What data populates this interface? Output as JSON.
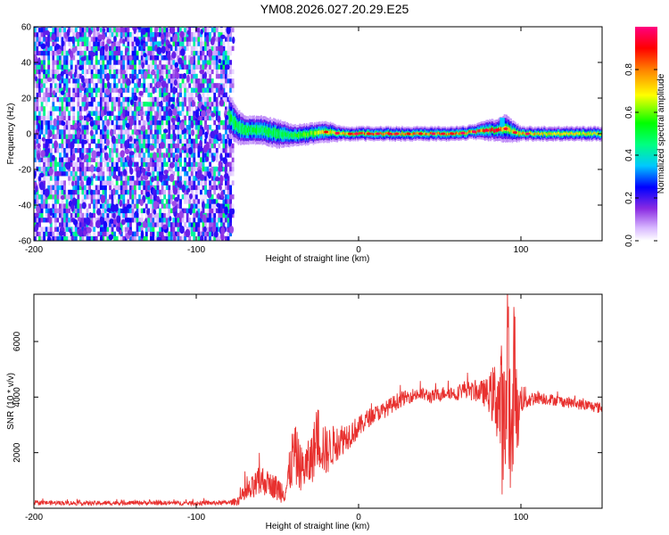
{
  "title": "YM08.2026.027.20.29.E25",
  "chart_data": [
    {
      "type": "heatmap",
      "title": "",
      "xlabel": "Height of straight line (km)",
      "ylabel": "Frequency (Hz)",
      "xlim": [
        -200,
        150
      ],
      "ylim": [
        -60,
        60
      ],
      "xticks": [
        -200,
        -100,
        0,
        100
      ],
      "yticks": [
        -60,
        -40,
        -20,
        0,
        20,
        40,
        60
      ],
      "colorbar": {
        "label": "Normalized spectral amplitude",
        "range": [
          0,
          1
        ],
        "ticks": [
          0.0,
          0.2,
          0.4,
          0.6,
          0.8
        ],
        "colormap": [
          "#ffffff",
          "#8a2be2",
          "#0000ff",
          "#00c8ff",
          "#00ff00",
          "#ffff00",
          "#ff0000",
          "#ff0080"
        ]
      },
      "noise_region": {
        "x_range": [
          -200,
          -77
        ],
        "y_range": [
          -60,
          60
        ],
        "typical_amplitude": 0.15
      },
      "ridge": {
        "description_x": [
          -80,
          -75,
          -70,
          -60,
          -50,
          -40,
          -30,
          -20,
          -10,
          0,
          10,
          20,
          30,
          40,
          50,
          60,
          70,
          80,
          85,
          90,
          95,
          100,
          110,
          120,
          130,
          140,
          150
        ],
        "center_freq": [
          10,
          4,
          2,
          2,
          0,
          -1,
          0,
          1,
          0,
          0,
          0,
          0,
          0,
          0,
          0,
          0,
          1,
          2,
          2,
          3,
          1,
          0,
          0,
          0,
          0,
          0,
          0
        ],
        "half_width": [
          6,
          5,
          4,
          4,
          4,
          3,
          3,
          3,
          2,
          2,
          2,
          2,
          2,
          2,
          2,
          2,
          2,
          3,
          3,
          4,
          3,
          2,
          2,
          2,
          2,
          2,
          2
        ],
        "peak_amplitude": [
          0.5,
          0.55,
          0.5,
          0.5,
          0.5,
          0.55,
          0.6,
          0.7,
          0.75,
          0.85,
          0.85,
          0.85,
          0.8,
          0.8,
          0.8,
          0.8,
          0.8,
          0.85,
          0.9,
          0.7,
          0.7,
          0.75,
          0.75,
          0.7,
          0.7,
          0.7,
          0.7
        ]
      }
    },
    {
      "type": "line",
      "title": "",
      "xlabel": "Height of straight line (km)",
      "ylabel": "SNR (10 * v/v)",
      "xlim": [
        -200,
        150
      ],
      "ylim": [
        0,
        7700
      ],
      "xticks": [
        -200,
        -100,
        0,
        100
      ],
      "yticks": [
        2000,
        4000,
        6000
      ],
      "line_color": "#e8312f",
      "series": [
        {
          "x": [
            -200,
            -180,
            -160,
            -140,
            -120,
            -100,
            -90,
            -80,
            -75,
            -70,
            -65,
            -60,
            -55,
            -50,
            -45,
            -40,
            -35,
            -30,
            -25,
            -20,
            -15,
            -10,
            -5,
            0,
            5,
            10,
            15,
            20,
            25,
            30,
            35,
            40,
            45,
            50,
            55,
            60,
            65,
            70,
            75,
            80,
            85,
            88,
            90,
            92,
            94,
            96,
            98,
            100,
            105,
            110,
            120,
            130,
            140,
            150
          ],
          "values": [
            200,
            190,
            180,
            200,
            190,
            180,
            190,
            200,
            250,
            500,
            700,
            1000,
            900,
            700,
            600,
            2000,
            1400,
            1600,
            2600,
            2000,
            2300,
            2500,
            2700,
            2900,
            3200,
            3400,
            3500,
            3700,
            3900,
            4000,
            4100,
            4100,
            4000,
            4100,
            4200,
            4100,
            4300,
            4200,
            4200,
            4100,
            4000,
            3500,
            2000,
            6500,
            1200,
            5500,
            3000,
            4000,
            3900,
            4000,
            3900,
            3800,
            3700,
            3600
          ],
          "noise_amplitude": [
            80,
            80,
            80,
            80,
            80,
            80,
            80,
            80,
            150,
            350,
            500,
            600,
            400,
            500,
            400,
            1200,
            800,
            900,
            1200,
            900,
            700,
            600,
            500,
            400,
            350,
            300,
            300,
            300,
            300,
            250,
            250,
            250,
            250,
            250,
            250,
            250,
            300,
            350,
            400,
            600,
            1500,
            2500,
            3500,
            3000,
            3000,
            2500,
            1200,
            600,
            300,
            250,
            200,
            200,
            200,
            200
          ]
        }
      ]
    }
  ]
}
